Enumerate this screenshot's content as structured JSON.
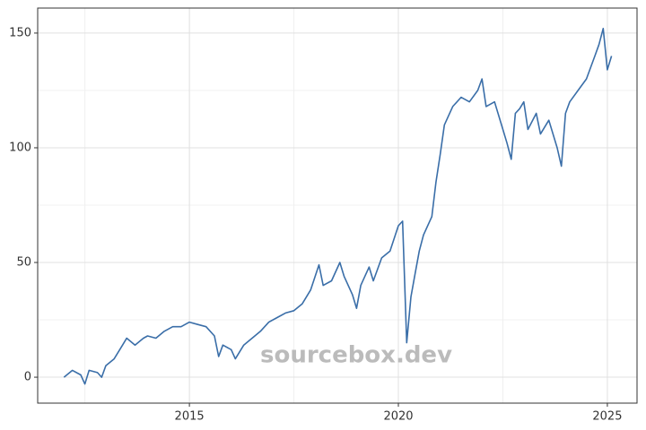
{
  "chart_data": {
    "type": "line",
    "watermark": "sourcebox.dev",
    "x": [
      2012.0,
      2012.2,
      2012.4,
      2012.5,
      2012.6,
      2012.8,
      2012.9,
      2013.0,
      2013.2,
      2013.4,
      2013.5,
      2013.7,
      2013.9,
      2014.0,
      2014.2,
      2014.4,
      2014.6,
      2014.8,
      2015.0,
      2015.2,
      2015.4,
      2015.6,
      2015.7,
      2015.8,
      2016.0,
      2016.1,
      2016.3,
      2016.5,
      2016.7,
      2016.9,
      2017.1,
      2017.3,
      2017.5,
      2017.7,
      2017.9,
      2018.1,
      2018.2,
      2018.4,
      2018.6,
      2018.7,
      2018.9,
      2019.0,
      2019.1,
      2019.3,
      2019.4,
      2019.6,
      2019.8,
      2020.0,
      2020.1,
      2020.2,
      2020.3,
      2020.4,
      2020.5,
      2020.6,
      2020.8,
      2020.9,
      2021.0,
      2021.1,
      2021.3,
      2021.5,
      2021.7,
      2021.9,
      2022.0,
      2022.1,
      2022.3,
      2022.5,
      2022.6,
      2022.7,
      2022.8,
      2022.9,
      2023.0,
      2023.1,
      2023.3,
      2023.4,
      2023.6,
      2023.8,
      2023.9,
      2024.0,
      2024.1,
      2024.3,
      2024.5,
      2024.7,
      2024.8,
      2024.9,
      2025.0,
      2025.1
    ],
    "series": [
      {
        "color": "#3a6ea8",
        "values": [
          0,
          3,
          1,
          -3,
          3,
          2,
          0,
          5,
          8,
          14,
          17,
          14,
          17,
          18,
          17,
          20,
          22,
          22,
          24,
          23,
          22,
          18,
          9,
          14,
          12,
          8,
          14,
          17,
          20,
          24,
          26,
          28,
          29,
          32,
          38,
          49,
          40,
          42,
          50,
          44,
          36,
          30,
          40,
          48,
          42,
          52,
          55,
          66,
          68,
          15,
          35,
          45,
          55,
          62,
          70,
          85,
          97,
          110,
          118,
          122,
          120,
          125,
          130,
          118,
          120,
          108,
          102,
          95,
          115,
          117,
          120,
          108,
          115,
          106,
          112,
          100,
          92,
          115,
          120,
          125,
          130,
          140,
          145,
          152,
          134,
          140
        ]
      }
    ],
    "xlim": [
      2011.37,
      2025.71
    ],
    "ylim": [
      -11.3,
      160.9
    ],
    "xticks": [
      2015,
      2020,
      2025
    ],
    "yticks": [
      0,
      50,
      100,
      150
    ],
    "grid": true
  }
}
